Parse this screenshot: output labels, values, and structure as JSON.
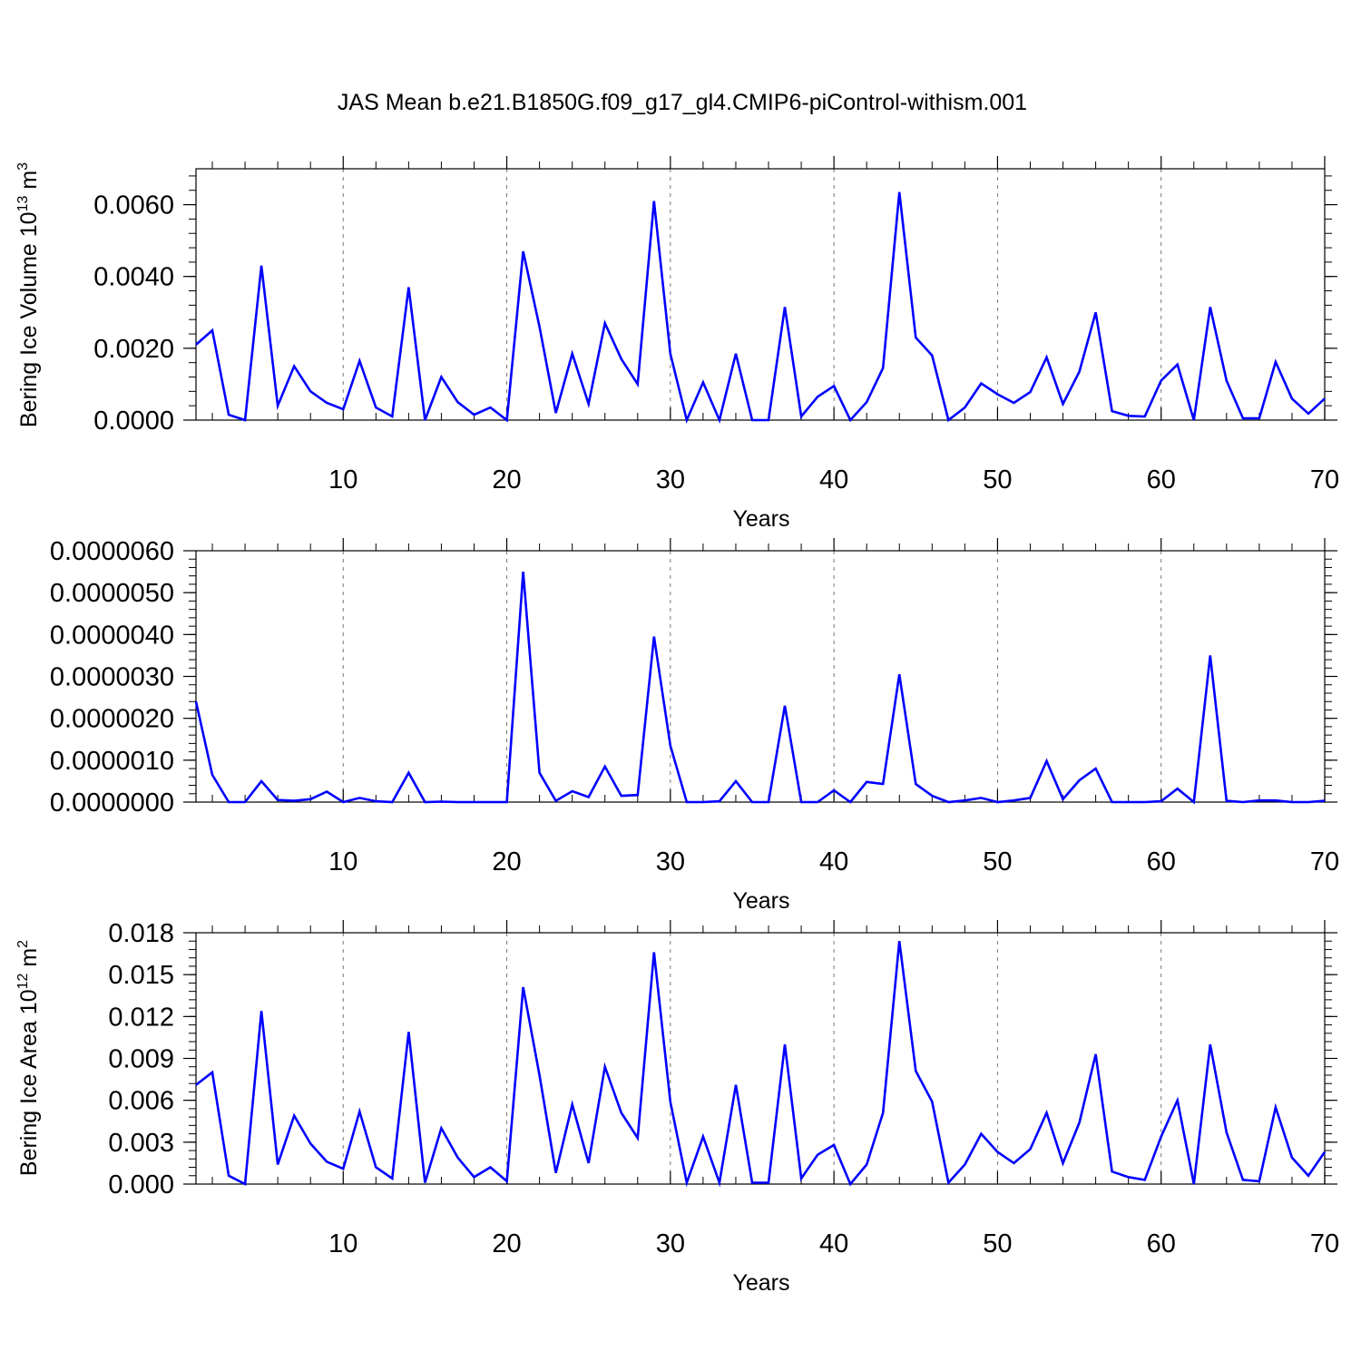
{
  "chart_data": [
    {
      "type": "line",
      "title": "JAS Mean b.e21.B1850G.f09_g17_gl4.CMIP6-piControl-withism.001",
      "xlabel": "Years",
      "ylabel_main": "Bering Ice Volume 10",
      "ylabel_sup": "13",
      "ylabel_unit": " m",
      "ylabel_unit_sup": "3",
      "xlim": [
        1,
        70
      ],
      "ylim": [
        0,
        0.007
      ],
      "xticks": [
        10,
        20,
        30,
        40,
        50,
        60,
        70
      ],
      "yticks": [
        0,
        0.002,
        0.004,
        0.006
      ],
      "ytick_labels": [
        "0.0000",
        "0.0020",
        "0.0040",
        "0.0060"
      ],
      "grid": "dashed vertical",
      "color": "#0000ff",
      "x": [
        1,
        2,
        3,
        4,
        5,
        6,
        7,
        8,
        9,
        10,
        11,
        12,
        13,
        14,
        15,
        16,
        17,
        18,
        19,
        20,
        21,
        22,
        23,
        24,
        25,
        26,
        27,
        28,
        29,
        30,
        31,
        32,
        33,
        34,
        35,
        36,
        37,
        38,
        39,
        40,
        41,
        42,
        43,
        44,
        45,
        46,
        47,
        48,
        49,
        50,
        51,
        52,
        53,
        54,
        55,
        56,
        57,
        58,
        59,
        60,
        61,
        62,
        63,
        64,
        65,
        66,
        67,
        68,
        69,
        70
      ],
      "values": [
        0.0021,
        0.0025,
        0.00015,
        0.0,
        0.0043,
        0.0004,
        0.0015,
        0.0008,
        0.00048,
        0.0003,
        0.00165,
        0.00035,
        0.0001,
        0.0037,
        0.0,
        0.0012,
        0.0005,
        0.00015,
        0.00035,
        0.0,
        0.0047,
        0.0026,
        0.0002,
        0.00185,
        0.00045,
        0.0027,
        0.0017,
        0.001,
        0.0061,
        0.00185,
        0.0,
        0.00105,
        0.0,
        0.00185,
        0.0,
        0.0,
        0.00315,
        0.0001,
        0.00065,
        0.00095,
        0.0,
        0.0005,
        0.00145,
        0.00635,
        0.0023,
        0.0018,
        0.0,
        0.00035,
        0.00102,
        0.00072,
        0.00048,
        0.00078,
        0.00175,
        0.00045,
        0.00135,
        0.003,
        0.00025,
        0.00012,
        0.0001,
        0.0011,
        0.00155,
        0.0,
        0.00315,
        0.0011,
        5e-05,
        5e-05,
        0.00162,
        0.0006,
        0.00018,
        0.0006
      ]
    },
    {
      "type": "line",
      "xlabel": "Years",
      "xlim": [
        1,
        70
      ],
      "ylim": [
        0,
        6e-06
      ],
      "xticks": [
        10,
        20,
        30,
        40,
        50,
        60,
        70
      ],
      "yticks": [
        0,
        1e-06,
        2e-06,
        3e-06,
        4e-06,
        5e-06,
        6e-06
      ],
      "ytick_labels": [
        "0.0000000",
        "0.0000010",
        "0.0000020",
        "0.0000030",
        "0.0000040",
        "0.0000050",
        "0.0000060"
      ],
      "grid": "dashed vertical",
      "color": "#0000ff",
      "x": [
        1,
        2,
        3,
        4,
        5,
        6,
        7,
        8,
        9,
        10,
        11,
        12,
        13,
        14,
        15,
        16,
        17,
        18,
        19,
        20,
        21,
        22,
        23,
        24,
        25,
        26,
        27,
        28,
        29,
        30,
        31,
        32,
        33,
        34,
        35,
        36,
        37,
        38,
        39,
        40,
        41,
        42,
        43,
        44,
        45,
        46,
        47,
        48,
        49,
        50,
        51,
        52,
        53,
        54,
        55,
        56,
        57,
        58,
        59,
        60,
        61,
        62,
        63,
        64,
        65,
        66,
        67,
        68,
        69,
        70
      ],
      "values": [
        2.4e-06,
        6.5e-07,
        0.0,
        0.0,
        5e-07,
        5e-08,
        3e-08,
        7e-08,
        2.5e-07,
        0.0,
        1e-07,
        2e-08,
        0.0,
        7e-07,
        0.0,
        1e-08,
        0.0,
        0.0,
        0.0,
        0.0,
        5.5e-06,
        7e-07,
        3e-08,
        2.6e-07,
        1.2e-07,
        8.5e-07,
        1.5e-07,
        1.7e-07,
        3.95e-06,
        1.35e-06,
        0.0,
        0.0,
        2e-08,
        5e-07,
        0.0,
        0.0,
        2.3e-06,
        0.0,
        0.0,
        2.8e-07,
        0.0,
        4.8e-07,
        4.3e-07,
        3.05e-06,
        4.3e-07,
        1.5e-07,
        0.0,
        4e-08,
        1e-07,
        0.0,
        4e-08,
        1e-07,
        9.8e-07,
        7e-08,
        5.2e-07,
        8e-07,
        0.0,
        0.0,
        0.0,
        2e-08,
        3.2e-07,
        0.0,
        3.5e-06,
        3e-08,
        0.0,
        4e-08,
        4e-08,
        0.0,
        0.0,
        3e-08
      ]
    },
    {
      "type": "line",
      "xlabel": "Years",
      "ylabel_main": "Bering Ice Area 10",
      "ylabel_sup": "12",
      "ylabel_unit": " m",
      "ylabel_unit_sup": "2",
      "xlim": [
        1,
        70
      ],
      "ylim": [
        0,
        0.018
      ],
      "xticks": [
        10,
        20,
        30,
        40,
        50,
        60,
        70
      ],
      "yticks": [
        0,
        0.003,
        0.006,
        0.009,
        0.012,
        0.015,
        0.018
      ],
      "ytick_labels": [
        "0.000",
        "0.003",
        "0.006",
        "0.009",
        "0.012",
        "0.015",
        "0.018"
      ],
      "grid": "dashed vertical",
      "color": "#0000ff",
      "x": [
        1,
        2,
        3,
        4,
        5,
        6,
        7,
        8,
        9,
        10,
        11,
        12,
        13,
        14,
        15,
        16,
        17,
        18,
        19,
        20,
        21,
        22,
        23,
        24,
        25,
        26,
        27,
        28,
        29,
        30,
        31,
        32,
        33,
        34,
        35,
        36,
        37,
        38,
        39,
        40,
        41,
        42,
        43,
        44,
        45,
        46,
        47,
        48,
        49,
        50,
        51,
        52,
        53,
        54,
        55,
        56,
        57,
        58,
        59,
        60,
        61,
        62,
        63,
        64,
        65,
        66,
        67,
        68,
        69,
        70
      ],
      "values": [
        0.0071,
        0.008,
        0.0006,
        0.0,
        0.0124,
        0.0014,
        0.0049,
        0.0029,
        0.0016,
        0.0011,
        0.0052,
        0.0012,
        0.0004,
        0.0109,
        0.0001,
        0.004,
        0.0019,
        0.0005,
        0.0012,
        0.0002,
        0.0141,
        0.0078,
        0.0008,
        0.0057,
        0.0015,
        0.0084,
        0.0051,
        0.0033,
        0.0166,
        0.0059,
        0.0001,
        0.0034,
        0.0001,
        0.0071,
        0.0001,
        0.0001,
        0.01,
        0.0004,
        0.0021,
        0.0028,
        0.0,
        0.0014,
        0.0051,
        0.0174,
        0.0081,
        0.0059,
        0.0001,
        0.0014,
        0.0036,
        0.0023,
        0.0015,
        0.0025,
        0.0051,
        0.0015,
        0.0044,
        0.0093,
        0.0009,
        0.0005,
        0.0003,
        0.0034,
        0.006,
        0.0,
        0.01,
        0.0037,
        0.0003,
        0.0002,
        0.0055,
        0.0019,
        0.0006,
        0.0023
      ]
    }
  ]
}
